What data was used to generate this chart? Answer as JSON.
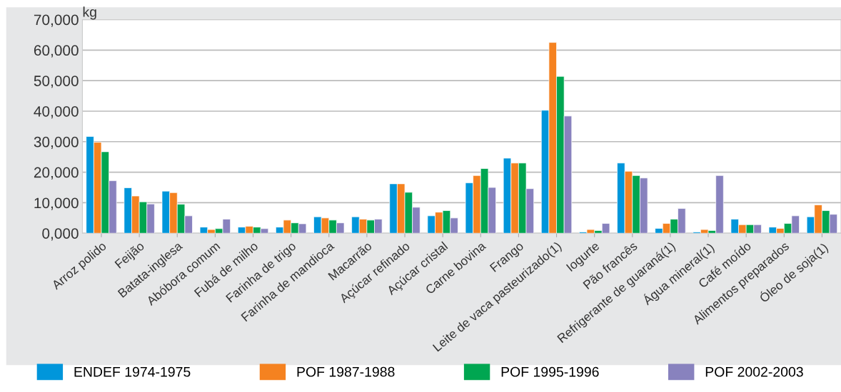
{
  "chart_data": {
    "type": "bar",
    "ylabel": "kg",
    "categories": [
      "Arroz polido",
      "Feijão",
      "Batata-inglesa",
      "Abóbora comum",
      "Fubá de milho",
      "Farinha de trigo",
      "Farinha de mandioca",
      "Macarrão",
      "Açúcar refinado",
      "Açúcar cristal",
      "Carne bovina",
      "Frango",
      "Leite de vaca pasteurizado(1)",
      "Iogurte",
      "Pão francês",
      "Refrigerante de guaraná(1)",
      "Água mineral(1)",
      "Café moído",
      "Alimentos preparados",
      "Óleo de soja(1)"
    ],
    "series": [
      {
        "name": "ENDEF 1974-1975",
        "color": "#0096db",
        "values": [
          31700,
          14900,
          13800,
          2000,
          2000,
          2000,
          5400,
          5400,
          16200,
          5700,
          16500,
          24600,
          40300,
          400,
          23000,
          1600,
          400,
          4600,
          2000,
          5400
        ]
      },
      {
        "name": "POF 1987-1988",
        "color": "#f58220",
        "values": [
          29800,
          12200,
          13300,
          1200,
          2300,
          4300,
          5000,
          4600,
          16200,
          6900,
          18900,
          23000,
          62500,
          1200,
          20300,
          3200,
          1200,
          2800,
          1600,
          9300
        ]
      },
      {
        "name": "POF 1995-1996",
        "color": "#00a651",
        "values": [
          26700,
          10300,
          9500,
          1500,
          2000,
          3400,
          4300,
          4300,
          13400,
          7400,
          21200,
          23000,
          51400,
          900,
          18900,
          4600,
          900,
          2800,
          3200,
          7400
        ]
      },
      {
        "name": "POF 2002-2003",
        "color": "#8882be",
        "values": [
          17200,
          9600,
          5700,
          4600,
          1500,
          3100,
          3400,
          4600,
          8500,
          5000,
          15000,
          14600,
          38400,
          3200,
          18100,
          8100,
          18900,
          2800,
          5700,
          6200
        ]
      }
    ],
    "ylim": [
      0,
      70000
    ],
    "yticks": [
      {
        "value": 0,
        "label": "0,000"
      },
      {
        "value": 10000,
        "label": "10,000"
      },
      {
        "value": 20000,
        "label": "20,000"
      },
      {
        "value": 30000,
        "label": "30,000"
      },
      {
        "value": 40000,
        "label": "40,000"
      },
      {
        "value": 50000,
        "label": "50,000"
      },
      {
        "value": 60000,
        "label": "60,000"
      },
      {
        "value": 70000,
        "label": "70,000"
      }
    ],
    "grid": "y",
    "legend": "bottom"
  }
}
